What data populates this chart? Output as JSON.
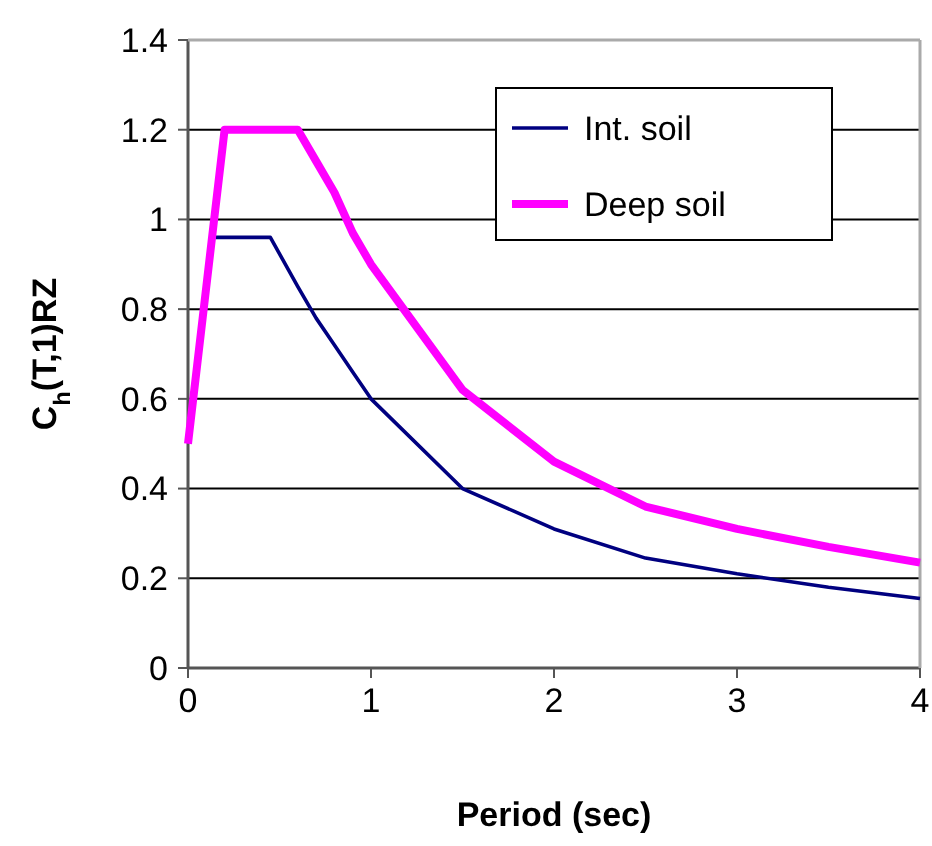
{
  "chart_data": {
    "type": "line",
    "xlabel": "Period (sec)",
    "ylabel": "C$_{h}$(T,1)RZ",
    "xlim": [
      0,
      4
    ],
    "ylim": [
      0,
      1.4
    ],
    "xticks": [
      0,
      1,
      2,
      3,
      4
    ],
    "yticks": [
      0,
      {
        "value": 0.2,
        "label": "0.2"
      },
      {
        "value": 0.4,
        "label": "0.4"
      },
      {
        "value": 0.6,
        "label": "0.6"
      },
      {
        "value": 0.8,
        "label": "0.8"
      },
      1,
      {
        "value": 1.2,
        "label": "1.2"
      },
      {
        "value": 1.4,
        "label": "1.4"
      }
    ],
    "grid": "y",
    "legend": "top right",
    "series": [
      {
        "name": "Int. soil",
        "color": "#000080",
        "x": [
          0.15,
          0.45,
          0.6,
          0.7,
          0.8,
          0.9,
          1,
          1.5,
          2,
          2.5,
          3,
          3.5,
          4
        ],
        "values": [
          0.96,
          0.96,
          0.85,
          0.78,
          0.72,
          0.66,
          0.6,
          0.4,
          0.31,
          0.245,
          0.21,
          0.18,
          0.155
        ]
      },
      {
        "name": "Deep soil",
        "color": "#ff00ff",
        "x": [
          0,
          0.2,
          0.6,
          0.7,
          0.8,
          0.9,
          1,
          1.5,
          2,
          2.5,
          3,
          3.5,
          4
        ],
        "values": [
          0.5,
          1.2,
          1.2,
          1.13,
          1.06,
          0.97,
          0.9,
          0.62,
          0.46,
          0.36,
          0.31,
          0.27,
          0.235
        ]
      }
    ]
  }
}
